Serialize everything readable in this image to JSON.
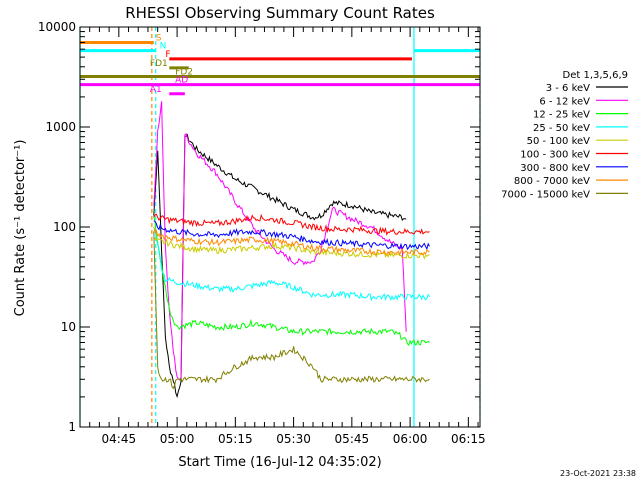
{
  "chart_data": {
    "type": "line",
    "title": "RHESSI Observing Summary Count Rates",
    "xlabel": "Start Time (16-Jul-12 04:35:02)",
    "ylabel": "Count Rate (s⁻¹ detector⁻¹)",
    "yscale": "log",
    "ylim": [
      1,
      10000
    ],
    "xlim_minutes_after_0435": [
      0,
      103
    ],
    "xtick_labels": [
      "04:45",
      "05:00",
      "05:15",
      "05:30",
      "05:45",
      "06:00",
      "06:15"
    ],
    "xtick_minutes": [
      10,
      25,
      40,
      55,
      70,
      85,
      100
    ],
    "ytick_labels": [
      "1",
      "10",
      "100",
      "1000",
      "10000"
    ],
    "ytick_values": [
      1,
      10,
      100,
      1000,
      10000
    ],
    "legend_title": "Det 1,3,5,6,9",
    "legend_position": "right",
    "series": [
      {
        "name": "3 - 6 keV",
        "color": "#000000",
        "t": [
          19,
          20,
          21,
          22,
          23,
          24,
          25,
          26,
          27,
          30,
          35,
          40,
          45,
          50,
          55,
          60,
          62,
          65,
          70,
          75,
          80,
          83,
          84
        ],
        "v": [
          130,
          600,
          60,
          8,
          4,
          3,
          2,
          3,
          850,
          600,
          420,
          300,
          240,
          190,
          150,
          125,
          130,
          175,
          165,
          140,
          130,
          125,
          120
        ]
      },
      {
        "name": "6 - 12 keV",
        "color": "#ff00ff",
        "t": [
          19,
          20,
          21,
          22,
          23,
          24,
          25,
          26,
          27,
          30,
          35,
          40,
          45,
          50,
          55,
          60,
          62,
          65,
          70,
          75,
          80,
          83,
          84
        ],
        "v": [
          150,
          900,
          1800,
          60,
          15,
          6,
          3,
          3,
          850,
          550,
          350,
          180,
          95,
          60,
          45,
          45,
          60,
          150,
          120,
          100,
          70,
          60,
          9
        ]
      },
      {
        "name": "12 - 25 keV",
        "color": "#00ff00",
        "t": [
          19,
          20,
          21,
          22,
          23,
          24,
          25,
          30,
          35,
          40,
          45,
          50,
          55,
          60,
          62,
          65,
          70,
          75,
          80,
          83,
          84,
          90
        ],
        "v": [
          130,
          70,
          40,
          25,
          15,
          12,
          10,
          11,
          10,
          10,
          11,
          10,
          9,
          9,
          9,
          9,
          9,
          9,
          9,
          8,
          7,
          7
        ]
      },
      {
        "name": "25 - 50 keV",
        "color": "#00ffff",
        "t": [
          19,
          20,
          21,
          22,
          25,
          30,
          35,
          40,
          45,
          50,
          55,
          60,
          65,
          70,
          75,
          80,
          84,
          90
        ],
        "v": [
          100,
          70,
          40,
          30,
          28,
          26,
          24,
          24,
          26,
          28,
          25,
          21,
          21,
          21,
          20,
          20,
          20,
          20
        ]
      },
      {
        "name": "50 - 100 keV",
        "color": "#cccc00",
        "t": [
          19,
          20,
          22,
          25,
          30,
          35,
          40,
          45,
          50,
          55,
          60,
          65,
          70,
          75,
          80,
          84,
          90
        ],
        "v": [
          75,
          72,
          70,
          65,
          60,
          58,
          60,
          62,
          65,
          62,
          56,
          55,
          54,
          53,
          52,
          52,
          52
        ]
      },
      {
        "name": "100 - 300 keV",
        "color": "#ff0000",
        "t": [
          19,
          20,
          22,
          25,
          30,
          35,
          40,
          45,
          50,
          55,
          60,
          65,
          70,
          75,
          80,
          84,
          90
        ],
        "v": [
          130,
          125,
          120,
          115,
          110,
          108,
          115,
          125,
          118,
          110,
          100,
          95,
          95,
          92,
          90,
          90,
          90
        ]
      },
      {
        "name": "300 - 800 keV",
        "color": "#0000ff",
        "t": [
          19,
          20,
          22,
          25,
          30,
          35,
          40,
          45,
          50,
          55,
          60,
          65,
          70,
          75,
          80,
          84,
          90
        ],
        "v": [
          110,
          100,
          95,
          90,
          85,
          83,
          88,
          90,
          85,
          80,
          72,
          70,
          68,
          66,
          65,
          64,
          64
        ]
      },
      {
        "name": "800 - 7000 keV",
        "color": "#ff8800",
        "t": [
          19,
          20,
          22,
          25,
          30,
          35,
          40,
          45,
          50,
          55,
          60,
          65,
          70,
          75,
          80,
          84,
          90
        ],
        "v": [
          95,
          85,
          80,
          76,
          72,
          70,
          72,
          75,
          72,
          68,
          62,
          60,
          58,
          57,
          56,
          56,
          56
        ]
      },
      {
        "name": "7000 - 15000 keV",
        "color": "#808000",
        "t": [
          19,
          20,
          21,
          22,
          23,
          24,
          25,
          27,
          30,
          35,
          40,
          45,
          50,
          55,
          60,
          62,
          65,
          70,
          75,
          80,
          84,
          90
        ],
        "v": [
          95,
          4,
          3,
          3,
          3,
          2.5,
          3,
          3,
          3,
          3,
          4,
          5,
          5,
          6,
          4,
          3,
          3,
          3,
          3,
          3,
          3,
          3
        ]
      }
    ],
    "flags": [
      {
        "label": "S",
        "color": "#ff8800",
        "y": 7000,
        "t": [
          0,
          19
        ],
        "label_t": 19.5
      },
      {
        "label": "N",
        "color": "#00ffff",
        "y": 5800,
        "t": [
          0,
          19.5
        ],
        "label_t": 20.5
      },
      {
        "label": "N",
        "color": "#00ffff",
        "y": 5800,
        "t": [
          86,
          103
        ],
        "label_t": null
      },
      {
        "label": "F",
        "color": "#ff0000",
        "y": 4800,
        "t": [
          23,
          85.5
        ],
        "label_t": 22
      },
      {
        "label": "FD1",
        "color": "#808000",
        "y": 3900,
        "t": [
          23,
          28
        ],
        "label_t": 18
      },
      {
        "label": "FD2",
        "color": "#808000",
        "y": 3200,
        "t": [
          0,
          103
        ],
        "label_t": 24.5
      },
      {
        "label": "AD",
        "color": "#ff00ff",
        "y": 2650,
        "t": [
          0,
          103
        ],
        "label_t": 24.5
      },
      {
        "label": "A1",
        "color": "#ff00ff",
        "y": 2150,
        "t": [
          23,
          27
        ],
        "label_t": 18
      }
    ],
    "vlines": [
      {
        "t": 0,
        "color": "#00ffff",
        "style": "solid"
      },
      {
        "t": 18.5,
        "color": "#ff8800",
        "style": "dashed"
      },
      {
        "t": 19.5,
        "color": "#00ffff",
        "style": "dashed"
      },
      {
        "t": 86,
        "color": "#00ffff",
        "style": "solid"
      },
      {
        "t": 103,
        "color": "#00ffff",
        "style": "dashed"
      }
    ]
  },
  "footer": {
    "timestamp": "23-Oct-2021 23:38"
  }
}
